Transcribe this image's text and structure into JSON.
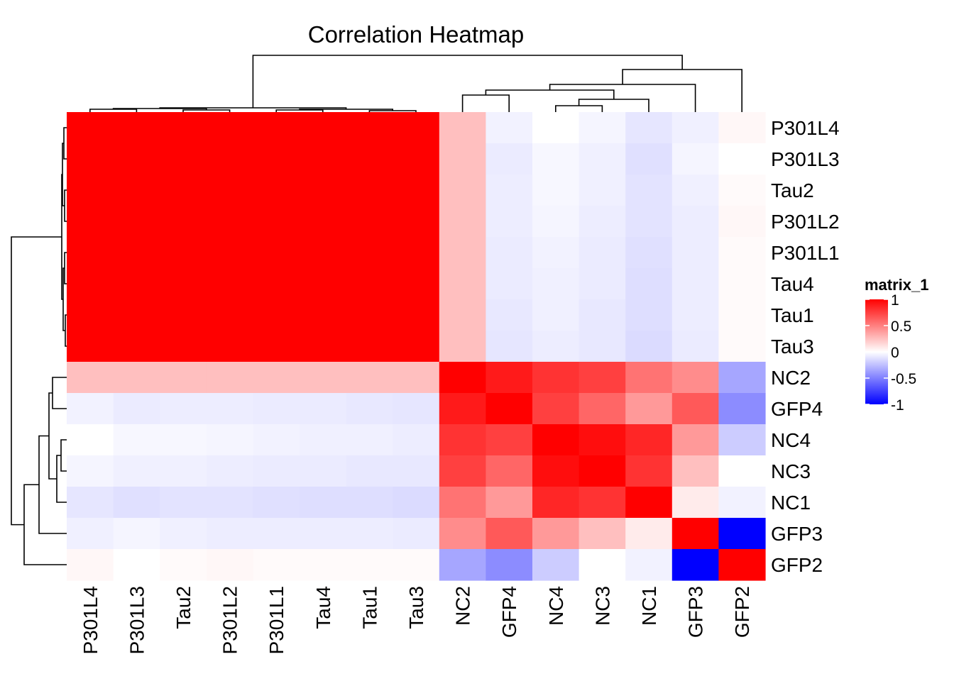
{
  "chart_data": {
    "type": "heatmap",
    "title": "Correlation Heatmap",
    "rows": [
      "P301L4",
      "P301L3",
      "Tau2",
      "P301L2",
      "P301L1",
      "Tau4",
      "Tau1",
      "Tau3",
      "NC2",
      "GFP4",
      "NC4",
      "NC3",
      "NC1",
      "GFP3",
      "GFP2"
    ],
    "columns": [
      "P301L4",
      "P301L3",
      "Tau2",
      "P301L2",
      "P301L1",
      "Tau4",
      "Tau1",
      "Tau3",
      "NC2",
      "GFP4",
      "NC4",
      "NC3",
      "NC1",
      "GFP3",
      "GFP2"
    ],
    "values": [
      [
        1,
        1,
        1,
        1,
        1,
        1,
        1,
        1,
        0.25,
        -0.05,
        0.0,
        -0.04,
        -0.1,
        -0.06,
        0.03
      ],
      [
        1,
        1,
        1,
        1,
        1,
        1,
        1,
        1,
        0.25,
        -0.08,
        -0.03,
        -0.06,
        -0.12,
        -0.04,
        0.0
      ],
      [
        1,
        1,
        1,
        1,
        1,
        1,
        1,
        1,
        0.25,
        -0.07,
        -0.03,
        -0.06,
        -0.11,
        -0.06,
        0.02
      ],
      [
        1,
        1,
        1,
        1,
        1,
        1,
        1,
        1,
        0.25,
        -0.07,
        -0.04,
        -0.07,
        -0.11,
        -0.07,
        0.03
      ],
      [
        1,
        1,
        1,
        1,
        1,
        1,
        1,
        1,
        0.25,
        -0.08,
        -0.05,
        -0.08,
        -0.12,
        -0.07,
        0.02
      ],
      [
        1,
        1,
        1,
        1,
        1,
        1,
        1,
        1,
        0.25,
        -0.08,
        -0.06,
        -0.08,
        -0.13,
        -0.07,
        0.02
      ],
      [
        1,
        1,
        1,
        1,
        1,
        1,
        1,
        1,
        0.25,
        -0.09,
        -0.06,
        -0.09,
        -0.13,
        -0.07,
        0.02
      ],
      [
        1,
        1,
        1,
        1,
        1,
        1,
        1,
        1,
        0.25,
        -0.1,
        -0.07,
        -0.09,
        -0.14,
        -0.08,
        0.02
      ],
      [
        0.25,
        0.25,
        0.25,
        0.25,
        0.25,
        0.25,
        0.25,
        0.25,
        1,
        0.9,
        0.8,
        0.75,
        0.55,
        0.45,
        -0.35
      ],
      [
        -0.05,
        -0.08,
        -0.07,
        -0.07,
        -0.08,
        -0.08,
        -0.09,
        -0.1,
        0.9,
        1,
        0.75,
        0.6,
        0.4,
        0.65,
        -0.45
      ],
      [
        0.0,
        -0.03,
        -0.03,
        -0.04,
        -0.05,
        -0.06,
        -0.06,
        -0.07,
        0.8,
        0.75,
        1,
        0.95,
        0.85,
        0.4,
        -0.2
      ],
      [
        -0.04,
        -0.06,
        -0.06,
        -0.07,
        -0.08,
        -0.08,
        -0.09,
        -0.09,
        0.75,
        0.6,
        0.95,
        1,
        0.8,
        0.25,
        0.0
      ],
      [
        -0.1,
        -0.12,
        -0.11,
        -0.11,
        -0.12,
        -0.13,
        -0.13,
        -0.14,
        0.55,
        0.4,
        0.85,
        0.8,
        1,
        0.08,
        -0.05
      ],
      [
        -0.06,
        -0.04,
        -0.06,
        -0.07,
        -0.07,
        -0.07,
        -0.07,
        -0.08,
        0.45,
        0.65,
        0.4,
        0.25,
        0.08,
        1,
        -1
      ],
      [
        0.03,
        0.0,
        0.02,
        0.03,
        0.02,
        0.02,
        0.02,
        0.02,
        -0.35,
        -0.45,
        -0.2,
        0.0,
        -0.05,
        -1,
        1
      ]
    ],
    "legend": {
      "title": "matrix_1",
      "ticks": [
        "1",
        "0.5",
        "0",
        "-0.5",
        "-1"
      ],
      "tick_values": [
        1,
        0.5,
        0,
        -0.5,
        -1
      ],
      "placement": "right"
    },
    "colors": {
      "high": "#ff0000",
      "mid": "#ffffff",
      "low": "#0000ff"
    },
    "range": [
      -1,
      1
    ]
  }
}
